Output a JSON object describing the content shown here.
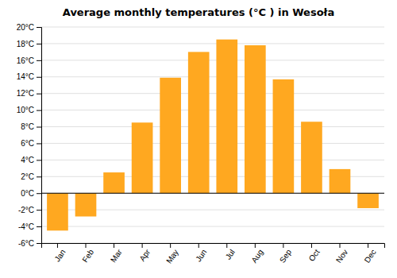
{
  "chart_data": {
    "type": "bar",
    "title": "Average monthly temperatures (°C ) in Wesoła",
    "categories": [
      "Jan",
      "Feb",
      "Mar",
      "Apr",
      "May",
      "Jun",
      "Jul",
      "Aug",
      "Sep",
      "Oct",
      "Nov",
      "Dec"
    ],
    "values": [
      -4.5,
      -2.8,
      2.5,
      8.5,
      13.9,
      17.0,
      18.5,
      17.8,
      13.7,
      8.6,
      2.9,
      -1.8
    ],
    "color": "#FFA820",
    "ylim": [
      -6,
      20
    ],
    "yticks": [
      {
        "value": -6,
        "label": "-6°C"
      },
      {
        "value": -4,
        "label": "-4°C"
      },
      {
        "value": -2,
        "label": "-2°C"
      },
      {
        "value": 0,
        "label": "0°C"
      },
      {
        "value": 2,
        "label": "2°C"
      },
      {
        "value": 4,
        "label": "4°C"
      },
      {
        "value": 6,
        "label": "6°C"
      },
      {
        "value": 8,
        "label": "8°C"
      },
      {
        "value": 10,
        "label": "10°C"
      },
      {
        "value": 12,
        "label": "12°C"
      },
      {
        "value": 14,
        "label": "14°C"
      },
      {
        "value": 16,
        "label": "16°C"
      },
      {
        "value": 18,
        "label": "18°C"
      },
      {
        "value": 20,
        "label": "20°C"
      }
    ],
    "grid": true
  }
}
